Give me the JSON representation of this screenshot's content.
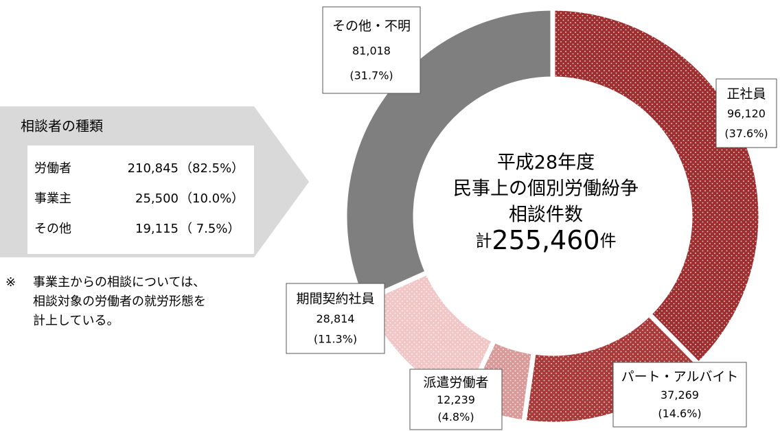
{
  "chart_data": {
    "type": "donut",
    "categories": [
      "正社員",
      "パート・アルバイト",
      "派遣労働者",
      "期間契約社員",
      "その他・不明"
    ],
    "values": [
      96120,
      37269,
      12239,
      28814,
      81018
    ],
    "value_labels": [
      "96,120",
      "37,269",
      "12,239",
      "28,814",
      "81,018"
    ],
    "shares": [
      37.6,
      14.6,
      4.8,
      11.3,
      31.7
    ],
    "share_labels": [
      "(37.6%)",
      "(14.6%)",
      "(4.8%)",
      "(11.3%)",
      "(31.7%)"
    ],
    "colors": [
      "#9e2f30",
      "#a83a3a",
      "#d99a9a",
      "#f0c6c6",
      "#7f7f7f"
    ],
    "dotted": [
      true,
      true,
      true,
      true,
      false
    ],
    "center_lines": [
      "平成28年度",
      "民事上の個別労働紛争",
      "相談件数"
    ],
    "total_prefix": "計",
    "total_label": "255,460",
    "total_suffix": "件"
  },
  "panel": {
    "title": "相談者の種類",
    "rows": [
      [
        "労働者",
        "210,845",
        "（82.5%）"
      ],
      [
        "事業主",
        "25,500",
        "（10.0%）"
      ],
      [
        "その他",
        "19,115",
        "（ 7.5%）"
      ]
    ]
  },
  "note": {
    "mark": "※",
    "lines": [
      "事業主からの相談については、",
      "相談対象の労働者の就労形態を",
      "計上している。"
    ]
  }
}
